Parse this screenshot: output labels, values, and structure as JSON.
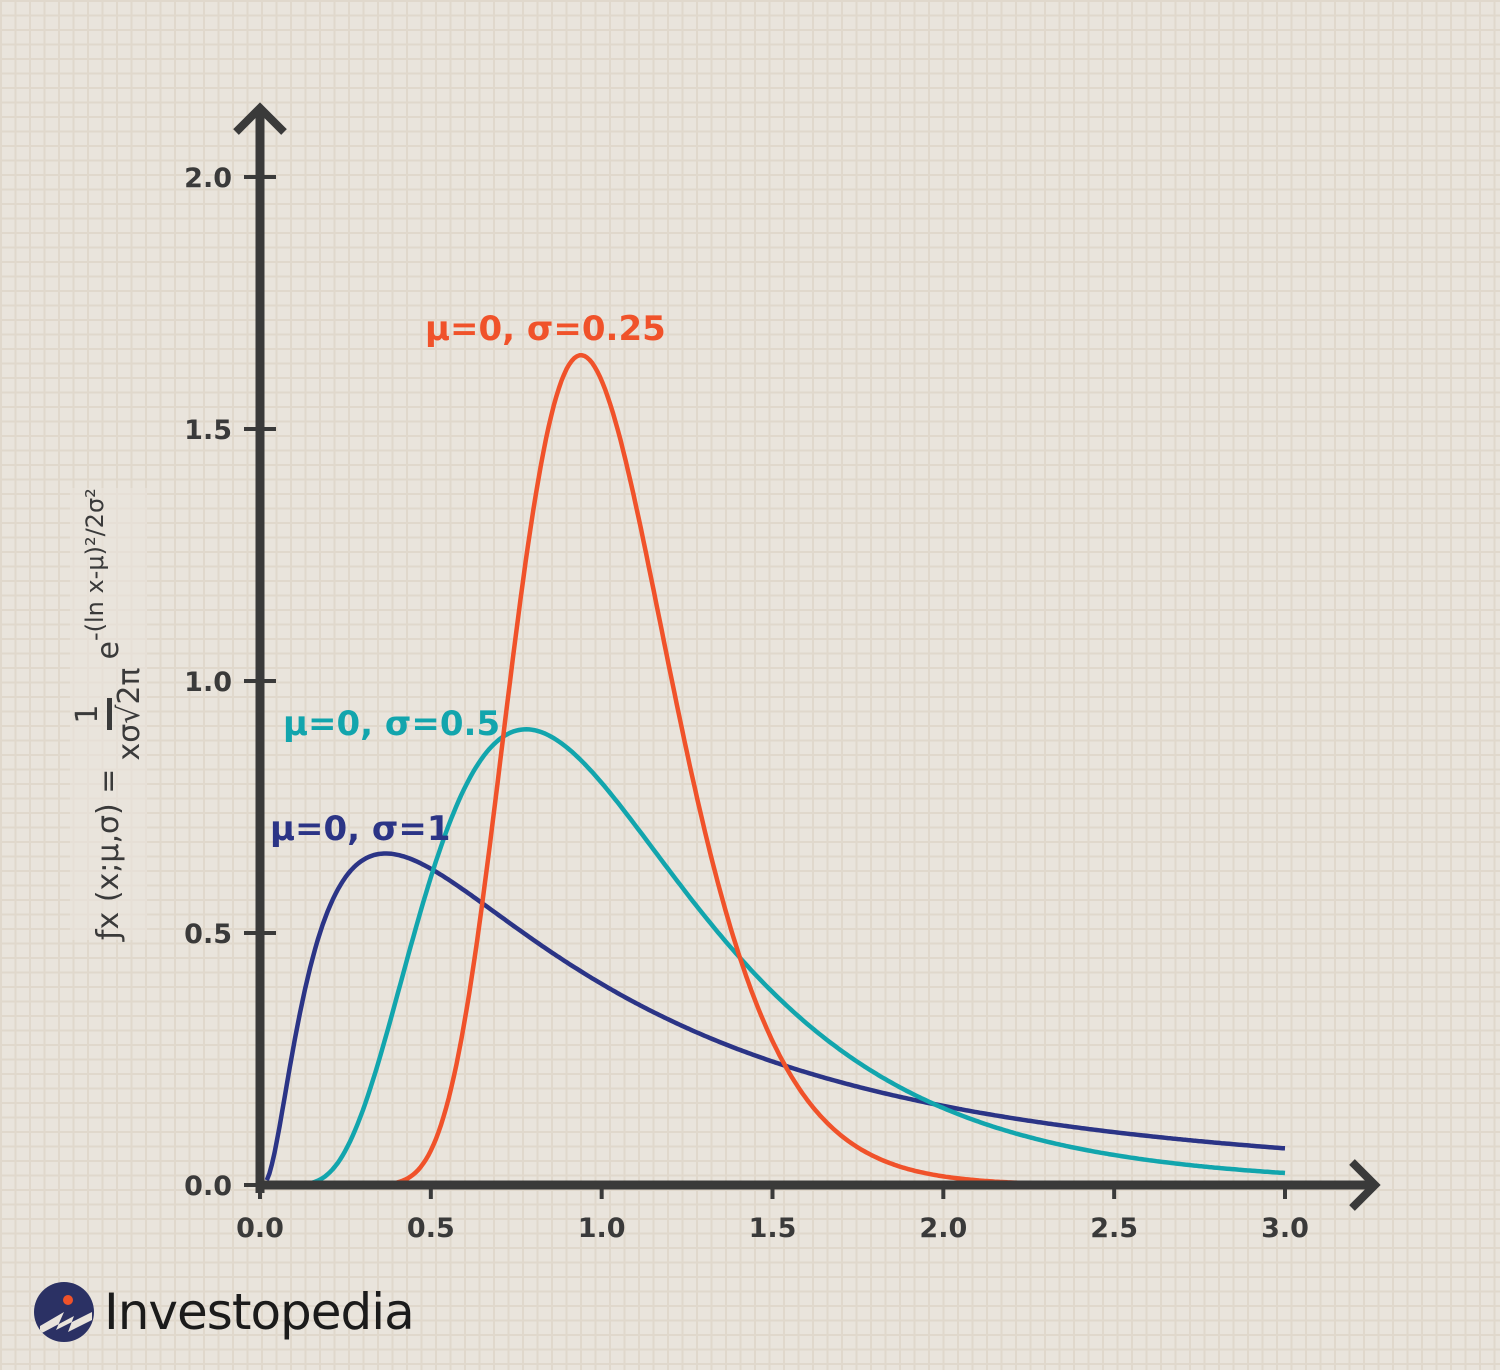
{
  "chart_data": {
    "type": "line",
    "title": "",
    "xlabel": "",
    "ylabel": "fx (x;μ,σ) = 1 / (xσ√2π) · e^(-(ln x-μ)²/2σ²)",
    "xlim": [
      0,
      3.0
    ],
    "ylim": [
      0,
      2.0
    ],
    "x_ticks": [
      "0.0",
      "0.5",
      "1.0",
      "1.5",
      "2.0",
      "2.5",
      "3.0"
    ],
    "y_ticks": [
      "0.0",
      "0.5",
      "1.0",
      "1.5",
      "2.0"
    ],
    "x_tick_values": [
      0,
      0.5,
      1.0,
      1.5,
      2.0,
      2.5,
      3.0
    ],
    "y_tick_values": [
      0,
      0.5,
      1.0,
      1.5,
      2.0
    ],
    "grid": false,
    "series": [
      {
        "name": "μ=0, σ=1",
        "mu": 0,
        "sigma": 1,
        "color": "#2b3486",
        "x_range": [
          0.02,
          3.0
        ],
        "peak": {
          "x": 0.37,
          "y": 0.66
        }
      },
      {
        "name": "μ=0, σ=0.5",
        "mu": 0,
        "sigma": 0.5,
        "color": "#12a5ad",
        "x_range": [
          0.05,
          3.0
        ],
        "peak": {
          "x": 0.78,
          "y": 0.91
        }
      },
      {
        "name": "μ=0, σ=0.25",
        "mu": 0,
        "sigma": 0.25,
        "color": "#f0522a",
        "x_range": [
          0.05,
          3.05
        ],
        "peak": {
          "x": 0.94,
          "y": 1.64
        }
      }
    ]
  },
  "formula": {
    "lhs": "ƒx (x;μ,σ) =",
    "numerator": "1",
    "denominator": "xσ√2π",
    "base": "e",
    "exponent": "-(ln x-μ)²/2σ²"
  },
  "brand": {
    "name": "Investopedia"
  },
  "colors": {
    "axis": "#3a3a3a",
    "background": "#e9e4dc"
  }
}
